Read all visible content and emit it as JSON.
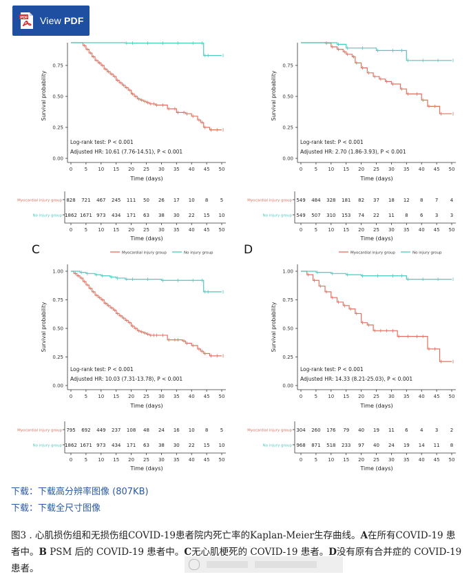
{
  "toolbar": {
    "view_pdf_prefix": "View ",
    "view_pdf_bold": "PDF",
    "pdf_badge": "PDF"
  },
  "colors": {
    "injury": "#e0705e",
    "no_injury": "#4dc9bf",
    "link": "#2c5aa0"
  },
  "chart_data": [
    {
      "type": "line",
      "panel": "A",
      "legend": null,
      "xlabel": "Time (days)",
      "ylabel": "Survival probability",
      "xlim": [
        0,
        50
      ],
      "ylim": [
        0,
        1
      ],
      "xticks": [
        0,
        5,
        10,
        15,
        20,
        25,
        30,
        35,
        40,
        45,
        50
      ],
      "yticks": [
        "0.00",
        "0.25",
        "0.50",
        "0.75",
        "1.00"
      ],
      "annotations": [
        "Log-rank test: P < 0.001",
        "Adjusted HR: 10.61 (7.76-14.51), P < 0.001"
      ],
      "series": [
        {
          "name": "Myocardial injury group",
          "x": [
            0,
            1,
            2,
            3,
            4,
            5,
            6,
            7,
            8,
            9,
            10,
            11,
            12,
            13,
            14,
            15,
            16,
            17,
            18,
            19,
            20,
            21,
            22,
            23,
            24,
            25,
            26,
            27,
            28,
            30,
            32,
            34,
            35,
            37,
            38,
            40,
            42,
            43,
            44,
            46,
            48,
            50
          ],
          "y": [
            1.0,
            0.98,
            0.96,
            0.94,
            0.91,
            0.88,
            0.85,
            0.82,
            0.79,
            0.77,
            0.75,
            0.72,
            0.7,
            0.68,
            0.66,
            0.63,
            0.61,
            0.59,
            0.57,
            0.55,
            0.52,
            0.5,
            0.48,
            0.47,
            0.46,
            0.45,
            0.44,
            0.44,
            0.43,
            0.43,
            0.4,
            0.4,
            0.37,
            0.37,
            0.36,
            0.34,
            0.31,
            0.29,
            0.25,
            0.23,
            0.23,
            0.23
          ]
        },
        {
          "name": "No injury group",
          "x": [
            0,
            3,
            5,
            8,
            10,
            13,
            15,
            18,
            20,
            25,
            30,
            35,
            40,
            43,
            44,
            45,
            50
          ],
          "y": [
            1.0,
            0.99,
            0.98,
            0.97,
            0.96,
            0.95,
            0.94,
            0.93,
            0.93,
            0.93,
            0.93,
            0.93,
            0.93,
            0.93,
            0.83,
            0.83,
            0.83
          ]
        }
      ],
      "risk_table": {
        "rows": [
          {
            "label": "Myocardial injury group",
            "values": [
              "828",
              "721",
              "467",
              "245",
              "111",
              "50",
              "26",
              "17",
              "10",
              "8",
              "5"
            ]
          },
          {
            "label": "No injury group",
            "values": [
              "1862",
              "1671",
              "973",
              "434",
              "171",
              "63",
              "38",
              "30",
              "22",
              "15",
              "10"
            ]
          }
        ],
        "xlabel": "Time (days)"
      }
    },
    {
      "type": "line",
      "panel": "B",
      "legend": null,
      "xlabel": "Time (days)",
      "ylabel": "Survival probability",
      "xlim": [
        0,
        50
      ],
      "ylim": [
        0,
        1
      ],
      "xticks": [
        0,
        5,
        10,
        15,
        20,
        25,
        30,
        35,
        40,
        45,
        50
      ],
      "yticks": [
        "0.00",
        "0.25",
        "0.50",
        "0.75",
        "1.00"
      ],
      "annotations": [
        "Log-rank test: P < 0.001",
        "Adjusted HR: 2.70 (1.86-3.93), P < 0.001"
      ],
      "series": [
        {
          "name": "Myocardial injury group",
          "x": [
            0,
            2,
            4,
            6,
            8,
            10,
            12,
            14,
            15,
            17,
            18,
            20,
            22,
            24,
            26,
            28,
            30,
            33,
            35,
            38,
            40,
            42,
            44,
            46,
            50
          ],
          "y": [
            1.0,
            0.99,
            0.97,
            0.95,
            0.93,
            0.9,
            0.88,
            0.86,
            0.84,
            0.82,
            0.77,
            0.73,
            0.69,
            0.66,
            0.64,
            0.62,
            0.6,
            0.56,
            0.52,
            0.52,
            0.47,
            0.42,
            0.42,
            0.36,
            0.36
          ]
        },
        {
          "name": "No injury group",
          "x": [
            0,
            5,
            8,
            10,
            12,
            15,
            20,
            25,
            30,
            33,
            35,
            40,
            45,
            50
          ],
          "y": [
            1.0,
            0.99,
            0.97,
            0.95,
            0.92,
            0.89,
            0.89,
            0.87,
            0.87,
            0.87,
            0.79,
            0.79,
            0.79,
            0.79
          ]
        }
      ],
      "risk_table": {
        "rows": [
          {
            "label": "Myocardial injury group",
            "values": [
              "549",
              "484",
              "328",
              "181",
              "82",
              "37",
              "18",
              "12",
              "8",
              "7",
              "4"
            ]
          },
          {
            "label": "No injury group",
            "values": [
              "549",
              "507",
              "310",
              "153",
              "74",
              "22",
              "11",
              "8",
              "6",
              "3",
              "3"
            ]
          }
        ],
        "xlabel": "Time (days)"
      }
    },
    {
      "type": "line",
      "panel": "C",
      "legend": [
        "Myocardial injury group",
        "No injury group"
      ],
      "xlabel": "Time (days)",
      "ylabel": "Survival probability",
      "xlim": [
        0,
        50
      ],
      "ylim": [
        0,
        1
      ],
      "xticks": [
        0,
        5,
        10,
        15,
        20,
        25,
        30,
        35,
        40,
        45,
        50
      ],
      "yticks": [
        "0.00",
        "0.25",
        "0.50",
        "0.75",
        "1.00"
      ],
      "annotations": [
        "Log-rank test: P < 0.001",
        "Adjusted HR: 10.03 (7.31-13.78), P < 0.001"
      ],
      "series": [
        {
          "name": "Myocardial injury group",
          "x": [
            0,
            1,
            2,
            3,
            4,
            5,
            6,
            7,
            8,
            9,
            10,
            11,
            12,
            13,
            14,
            15,
            16,
            17,
            18,
            19,
            20,
            21,
            22,
            23,
            24,
            25,
            26,
            27,
            28,
            30,
            32,
            34,
            35,
            37,
            38,
            40,
            42,
            43,
            44,
            46,
            48,
            50
          ],
          "y": [
            1.0,
            0.98,
            0.96,
            0.94,
            0.91,
            0.88,
            0.85,
            0.82,
            0.79,
            0.77,
            0.75,
            0.72,
            0.7,
            0.68,
            0.66,
            0.63,
            0.61,
            0.59,
            0.57,
            0.55,
            0.52,
            0.5,
            0.48,
            0.47,
            0.46,
            0.45,
            0.44,
            0.44,
            0.44,
            0.44,
            0.4,
            0.4,
            0.4,
            0.39,
            0.37,
            0.35,
            0.32,
            0.3,
            0.28,
            0.26,
            0.26,
            0.26
          ]
        },
        {
          "name": "No injury group",
          "x": [
            0,
            3,
            5,
            8,
            10,
            13,
            15,
            18,
            20,
            25,
            30,
            35,
            40,
            43,
            44,
            45,
            50
          ],
          "y": [
            1.0,
            0.99,
            0.98,
            0.97,
            0.96,
            0.95,
            0.94,
            0.93,
            0.93,
            0.93,
            0.92,
            0.92,
            0.92,
            0.92,
            0.82,
            0.82,
            0.82
          ]
        }
      ],
      "risk_table": {
        "rows": [
          {
            "label": "Myocardial injury group",
            "values": [
              "795",
              "692",
              "449",
              "237",
              "108",
              "48",
              "24",
              "16",
              "10",
              "8",
              "5"
            ]
          },
          {
            "label": "No injury group",
            "values": [
              "1862",
              "1671",
              "973",
              "434",
              "171",
              "63",
              "38",
              "30",
              "22",
              "15",
              "10"
            ]
          }
        ],
        "xlabel": "Time (days)"
      }
    },
    {
      "type": "line",
      "panel": "D",
      "legend": [
        "Myocardial injury group",
        "No injury group"
      ],
      "xlabel": "Time (days)",
      "ylabel": "Survival probability",
      "xlim": [
        0,
        50
      ],
      "ylim": [
        0,
        1
      ],
      "xticks": [
        0,
        5,
        10,
        15,
        20,
        25,
        30,
        35,
        40,
        45,
        50
      ],
      "yticks": [
        "0.00",
        "0.25",
        "0.50",
        "0.75",
        "1.00"
      ],
      "annotations": [
        "Log-rank test: P < 0.001",
        "Adjusted HR: 14.33 (8.21-25.03), P < 0.001"
      ],
      "series": [
        {
          "name": "Myocardial injury group",
          "x": [
            0,
            2,
            4,
            6,
            8,
            10,
            12,
            14,
            16,
            18,
            20,
            22,
            24,
            26,
            28,
            30,
            32,
            35,
            38,
            40,
            42,
            44,
            46,
            50
          ],
          "y": [
            1.0,
            0.97,
            0.92,
            0.87,
            0.82,
            0.77,
            0.73,
            0.7,
            0.67,
            0.63,
            0.55,
            0.53,
            0.48,
            0.48,
            0.48,
            0.48,
            0.43,
            0.43,
            0.43,
            0.43,
            0.32,
            0.32,
            0.21,
            0.21
          ]
        },
        {
          "name": "No injury group",
          "x": [
            0,
            5,
            10,
            15,
            20,
            25,
            30,
            33,
            35,
            40,
            45,
            50
          ],
          "y": [
            1.0,
            0.99,
            0.98,
            0.97,
            0.96,
            0.96,
            0.96,
            0.96,
            0.93,
            0.93,
            0.93,
            0.93
          ]
        }
      ],
      "risk_table": {
        "rows": [
          {
            "label": "Myocardial injury group",
            "values": [
              "304",
              "260",
              "176",
              "79",
              "40",
              "19",
              "11",
              "6",
              "4",
              "3",
              "2"
            ]
          },
          {
            "label": "No injury group",
            "values": [
              "968",
              "871",
              "518",
              "233",
              "97",
              "40",
              "24",
              "19",
              "14",
              "11",
              "8"
            ]
          }
        ],
        "xlabel": "Time (days)"
      }
    }
  ],
  "downloads": {
    "prefix": "下载：",
    "hi_res": "下载高分辨率图像",
    "hi_res_size": "(807KB)",
    "full_size": "下载全尺寸图像"
  },
  "caption": {
    "t1": "图3 . 心肌损伤组和无损伤组COVID-19患者院内死亡率的Kaplan-Meier生存曲线。",
    "a": "A",
    "t2": "在所有COVID-19 患者中。",
    "b": "B",
    "t3": " PSM 后的 COVID-19 患者中。",
    "c": "C",
    "t4": "无心肌梗死的 COVID-19 患者。",
    "d": "D",
    "t5": "没有原有合并症的 COVID-19 患者。"
  }
}
